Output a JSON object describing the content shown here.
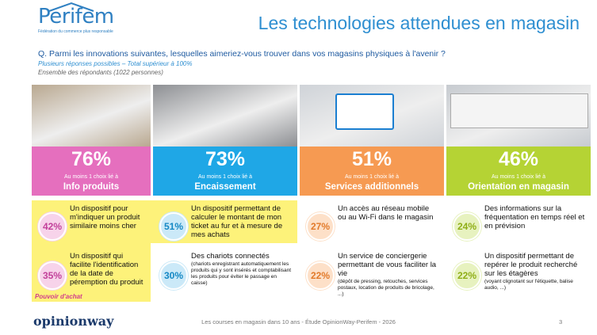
{
  "header": {
    "logo": "Perifem",
    "tagline": "Fédération du commerce plus responsable",
    "title": "Les technologies attendues en magasin"
  },
  "question": {
    "text": "Q. Parmi les innovations suivantes, lesquelles aimeriez-vous trouver dans vos magasins physiques à l'avenir ?",
    "note": "Plusieurs réponses possibles – Total supérieur à 100%",
    "base": "Ensemble des répondants (1022 personnes)"
  },
  "columns": [
    {
      "pct": "76%",
      "lead": "Au moins 1 choix lié à",
      "name": "Info produits",
      "color": "#e56fbe",
      "light": "#f7d3ea",
      "dark": "#c2409a",
      "items": [
        {
          "pct": "42%",
          "text": "Un dispositif pour m'indiquer un produit similaire moins cher"
        },
        {
          "pct": "35%",
          "text": "Un dispositif qui facilite l'identification de la date de péremption du produit"
        }
      ]
    },
    {
      "pct": "73%",
      "lead": "Au moins 1 choix lié à",
      "name": "Encaissement",
      "color": "#1fa7e6",
      "light": "#cbe9f8",
      "dark": "#1588c4",
      "items": [
        {
          "pct": "51%",
          "text": "Un dispositif permettant de calculer le montant de mon ticket au fur et à mesure de mes achats"
        },
        {
          "pct": "30%",
          "text": "Des chariots connectés",
          "note": "(chariots enregistrant automatiquement les produits qui y sont insérés et comptabilisant les produits pour éviter le passage en caisse)"
        }
      ]
    },
    {
      "pct": "51%",
      "lead": "Au moins 1 choix lié à",
      "name": "Services additionnels",
      "color": "#f69a52",
      "light": "#fde0c8",
      "dark": "#e27a2a",
      "items": [
        {
          "pct": "27%",
          "text": "Un accès au réseau mobile ou au Wi-Fi dans le magasin"
        },
        {
          "pct": "22%",
          "text": "Un service de conciergerie permettant de vous faciliter la vie",
          "note": "(dépôt de pressing, retouches, services postaux, location de produits de bricolage, ...)"
        }
      ]
    },
    {
      "pct": "46%",
      "lead": "Au moins 1 choix lié à",
      "name": "Orientation en magasin",
      "color": "#b5d334",
      "light": "#e7f2bf",
      "dark": "#8fae17",
      "items": [
        {
          "pct": "24%",
          "text": "Des informations sur la fréquentation en temps réel et en prévision"
        },
        {
          "pct": "22%",
          "text": "Un dispositif permettant de repérer le produit recherché sur les étagères",
          "note": "(voyant clignotant sur l'étiquette, balise audio, ...)"
        }
      ]
    }
  ],
  "highlight_label": "Pouvoir d'achat",
  "footer": {
    "brand": "opinionway",
    "caption": "Les courses en magasin dans 10 ans - Étude OpinionWay-Perifem - 2026",
    "page": "3"
  }
}
